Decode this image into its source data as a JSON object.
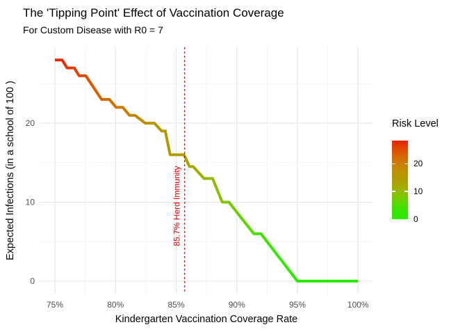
{
  "chart": {
    "title": "The 'Tipping Point' Effect of Vaccination Coverage",
    "subtitle": "For Custom Disease with R0 = 7",
    "x_axis_title": "Kindergarten Vaccination Coverage Rate",
    "y_axis_title": "Expected Infections (in a school of 100 )",
    "colors": {
      "background": "#FFFFFF",
      "grid_major": "#E4E4E4",
      "grid_minor": "#F1F1F1",
      "tick_label": "#4D4D4D",
      "text": "#000000",
      "vline": "#E60000"
    }
  },
  "chart_data": {
    "type": "line",
    "title": "The 'Tipping Point' Effect of Vaccination Coverage",
    "subtitle": "For Custom Disease with R0 = 7",
    "xlabel": "Kindergarten Vaccination Coverage Rate",
    "ylabel": "Expected Infections (in a school of 100 )",
    "xlim": [
      73.75,
      101.25
    ],
    "ylim": [
      -1.4,
      29.4
    ],
    "grid": true,
    "x_major_ticks": [
      75,
      80,
      85,
      90,
      95,
      100
    ],
    "x_tick_labels": [
      "75%",
      "80%",
      "85%",
      "90%",
      "95%",
      "100%"
    ],
    "x_minor_ticks": [
      77.5,
      82.5,
      87.5,
      92.5,
      97.5
    ],
    "y_major_ticks": [
      0,
      10,
      20
    ],
    "y_tick_labels": [
      "0",
      "10",
      "20"
    ],
    "y_minor_ticks": [
      5,
      15,
      25
    ],
    "points": [
      [
        75.0,
        28
      ],
      [
        75.6,
        28
      ],
      [
        76.0,
        27
      ],
      [
        76.6,
        27
      ],
      [
        77.0,
        26
      ],
      [
        77.55,
        26
      ],
      [
        78.85,
        23
      ],
      [
        79.5,
        23
      ],
      [
        80.05,
        22
      ],
      [
        80.6,
        22
      ],
      [
        81.15,
        21
      ],
      [
        81.6,
        21
      ],
      [
        82.45,
        20
      ],
      [
        83.2,
        20
      ],
      [
        83.8,
        19
      ],
      [
        84.1,
        19
      ],
      [
        84.5,
        16
      ],
      [
        85.65,
        16
      ],
      [
        86.1,
        14.5
      ],
      [
        86.4,
        14.5
      ],
      [
        87.3,
        13
      ],
      [
        88.0,
        13
      ],
      [
        88.8,
        10
      ],
      [
        89.35,
        10
      ],
      [
        91.4,
        6
      ],
      [
        92.0,
        6
      ],
      [
        95.0,
        0
      ],
      [
        100.0,
        0
      ]
    ],
    "vline": {
      "x": 85.7,
      "label": "85.7% Herd Immunity",
      "color": "#E60000",
      "style": "dashed"
    },
    "legend": {
      "title": "Risk Level",
      "position": "right",
      "min": 0,
      "max": 28.4,
      "ticks": [
        20,
        10,
        0
      ],
      "tick_labels": [
        "20",
        "10",
        "0"
      ],
      "low_color": "#2BEA00",
      "high_color": "#E8220A"
    },
    "gradient_stops": [
      {
        "at": 0.0,
        "color": "#E8220A"
      },
      {
        "at": 0.1,
        "color": "#E14700"
      },
      {
        "at": 0.2,
        "color": "#D66700"
      },
      {
        "at": 0.3,
        "color": "#C98000"
      },
      {
        "at": 0.4,
        "color": "#BB9400"
      },
      {
        "at": 0.5,
        "color": "#B09B00"
      },
      {
        "at": 0.6,
        "color": "#A0AF00"
      },
      {
        "at": 0.7,
        "color": "#83C300"
      },
      {
        "at": 0.8,
        "color": "#55DA00"
      },
      {
        "at": 0.9,
        "color": "#33E600"
      },
      {
        "at": 1.0,
        "color": "#2BEA00"
      }
    ]
  }
}
